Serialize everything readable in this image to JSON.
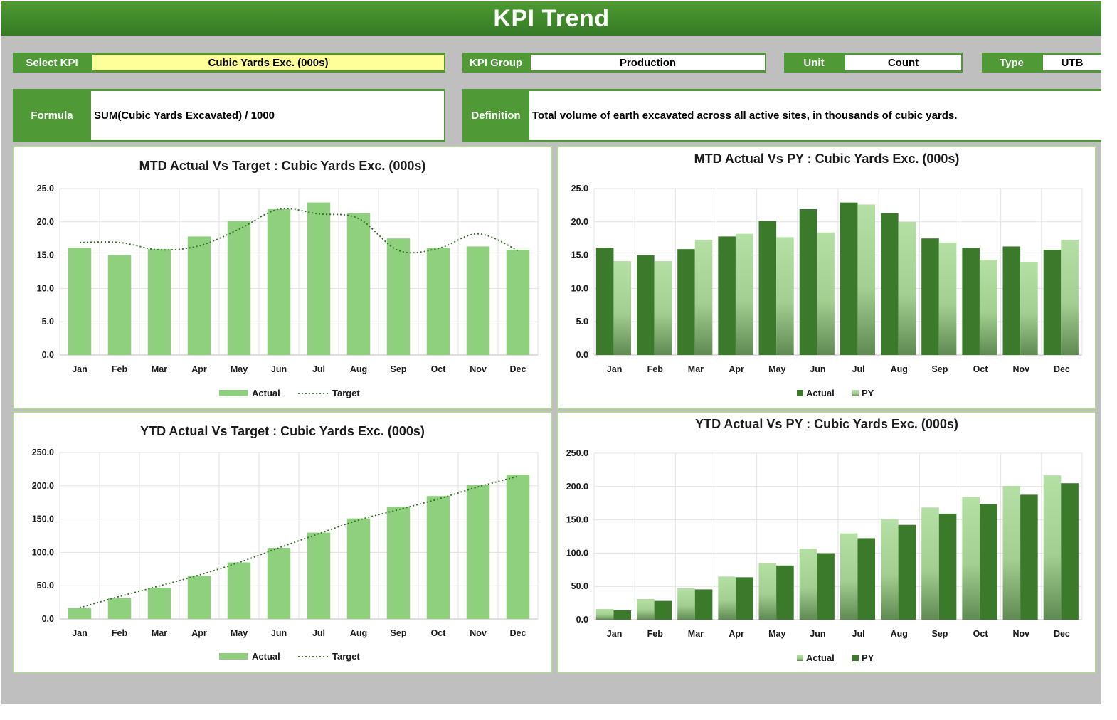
{
  "header": {
    "title": "KPI Trend"
  },
  "selectors": {
    "select_kpi": {
      "label": "Select KPI",
      "value": "Cubic Yards Exc. (000s)"
    },
    "kpi_group": {
      "label": "KPI Group",
      "value": "Production"
    },
    "unit": {
      "label": "Unit",
      "value": "Count"
    },
    "type": {
      "label": "Type",
      "value": "UTB"
    }
  },
  "formula": {
    "label": "Formula",
    "value": "SUM(Cubic Yards Excavated) / 1000"
  },
  "definition": {
    "label": "Definition",
    "value": "Total volume of earth excavated across all active sites, in thousands of cubic yards."
  },
  "colors": {
    "header_green": "#3f8a2c",
    "label_green": "#4f9a37",
    "bar_light": "#8fd07e",
    "bar_dark": "#3a7a2a",
    "py_light": "#b5e0a5",
    "target_line": "#2f6f22",
    "selected_value_bg": "#ffff99"
  },
  "chart_data": [
    {
      "id": "mtd-target",
      "type": "bar",
      "title": "MTD Actual Vs Target : Cubic Yards Exc. (000s)",
      "categories": [
        "Jan",
        "Feb",
        "Mar",
        "Apr",
        "May",
        "Jun",
        "Jul",
        "Aug",
        "Sep",
        "Oct",
        "Nov",
        "Dec"
      ],
      "series": [
        {
          "name": "Actual",
          "kind": "bar",
          "style": "light",
          "values": [
            16.1,
            15.0,
            15.9,
            17.8,
            20.1,
            21.9,
            22.9,
            21.3,
            17.5,
            16.1,
            16.3,
            15.8
          ]
        },
        {
          "name": "Target",
          "kind": "line",
          "style": "dotted",
          "values": [
            16.9,
            16.9,
            15.8,
            16.4,
            18.9,
            21.9,
            21.2,
            20.5,
            15.7,
            16.0,
            18.2,
            15.7
          ]
        }
      ],
      "ylim": [
        0,
        25
      ],
      "yticks": [
        "0.0",
        "5.0",
        "10.0",
        "15.0",
        "20.0",
        "25.0"
      ],
      "grid": true,
      "legend": "bottom"
    },
    {
      "id": "mtd-py",
      "type": "bar",
      "title": "MTD Actual Vs PY : Cubic Yards Exc. (000s)",
      "categories": [
        "Jan",
        "Feb",
        "Mar",
        "Apr",
        "May",
        "Jun",
        "Jul",
        "Aug",
        "Sep",
        "Oct",
        "Nov",
        "Dec"
      ],
      "series": [
        {
          "name": "Actual",
          "kind": "bar",
          "style": "dark",
          "values": [
            16.1,
            15.0,
            15.9,
            17.8,
            20.1,
            21.9,
            22.9,
            21.3,
            17.5,
            16.1,
            16.3,
            15.8
          ]
        },
        {
          "name": "PY",
          "kind": "bar",
          "style": "light-gradient",
          "values": [
            14.1,
            14.1,
            17.3,
            18.2,
            17.7,
            18.4,
            22.6,
            20.0,
            16.9,
            14.3,
            14.0,
            17.3
          ]
        }
      ],
      "ylim": [
        0,
        25
      ],
      "yticks": [
        "0.0",
        "5.0",
        "10.0",
        "15.0",
        "20.0",
        "25.0"
      ],
      "grid": true,
      "legend": "bottom"
    },
    {
      "id": "ytd-target",
      "type": "bar",
      "title": "YTD Actual Vs Target : Cubic Yards Exc. (000s)",
      "categories": [
        "Jan",
        "Feb",
        "Mar",
        "Apr",
        "May",
        "Jun",
        "Jul",
        "Aug",
        "Sep",
        "Oct",
        "Nov",
        "Dec"
      ],
      "series": [
        {
          "name": "Actual",
          "kind": "bar",
          "style": "light",
          "values": [
            16.1,
            31.1,
            47.0,
            64.8,
            84.9,
            106.8,
            129.7,
            151.0,
            168.5,
            184.6,
            200.9,
            216.7
          ]
        },
        {
          "name": "Target",
          "kind": "line",
          "style": "dotted",
          "values": [
            16.9,
            33.8,
            49.6,
            66.0,
            84.9,
            106.8,
            128.0,
            148.5,
            164.2,
            180.2,
            198.4,
            214.1
          ]
        }
      ],
      "ylim": [
        0,
        250
      ],
      "yticks": [
        "0.0",
        "50.0",
        "100.0",
        "150.0",
        "200.0",
        "250.0"
      ],
      "grid": true,
      "legend": "bottom"
    },
    {
      "id": "ytd-py",
      "type": "bar",
      "title": "YTD Actual Vs PY : Cubic Yards Exc. (000s)",
      "categories": [
        "Jan",
        "Feb",
        "Mar",
        "Apr",
        "May",
        "Jun",
        "Jul",
        "Aug",
        "Sep",
        "Oct",
        "Nov",
        "Dec"
      ],
      "series": [
        {
          "name": "Actual",
          "kind": "bar",
          "style": "light-gradient",
          "values": [
            16.1,
            31.1,
            47.0,
            64.8,
            84.9,
            106.8,
            129.7,
            151.0,
            168.5,
            184.6,
            200.9,
            216.7
          ]
        },
        {
          "name": "PY",
          "kind": "bar",
          "style": "dark",
          "values": [
            14.1,
            28.2,
            45.5,
            63.7,
            81.4,
            99.8,
            122.4,
            142.4,
            159.3,
            173.6,
            187.6,
            204.9
          ]
        }
      ],
      "ylim": [
        0,
        250
      ],
      "yticks": [
        "0.0",
        "50.0",
        "100.0",
        "150.0",
        "200.0",
        "250.0"
      ],
      "grid": true,
      "legend": "bottom"
    }
  ]
}
